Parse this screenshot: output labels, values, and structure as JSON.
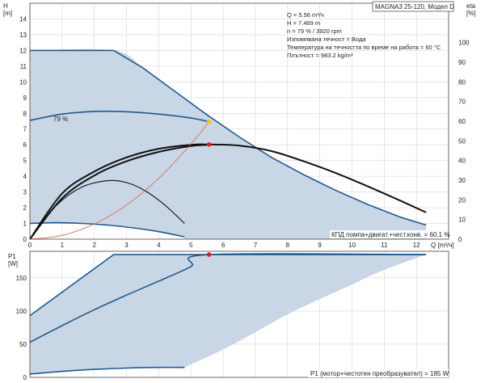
{
  "model_label": "MAGNA3 25-120, Модел D",
  "info_lines": [
    "Q = 5.56 m³/ч",
    "H = 7.469 m",
    "n = 79 % / 3920 rpm",
    "Изпомпвана течност = Вода",
    "Температура на течността по време на работа = 60 °C",
    "Плътност = 983.2 kg/m³"
  ],
  "chart_data": [
    {
      "type": "line",
      "title": "",
      "ylabel": "H",
      "yunit": "[m]",
      "ylabel_right": "eta",
      "yunit_right": "[%]",
      "xlabel": "Q [m³/ч]",
      "xlim": [
        0,
        13
      ],
      "ylim": [
        0,
        15
      ],
      "ylim_right": [
        0,
        120
      ],
      "xticks": [
        0,
        1,
        2,
        3,
        4,
        5,
        6,
        7,
        8,
        9,
        10,
        11,
        12
      ],
      "yticks": [
        0,
        1,
        2,
        3,
        4,
        5,
        6,
        7,
        8,
        9,
        10,
        11,
        12,
        13,
        14
      ],
      "yticks_right": [
        0,
        10,
        20,
        30,
        40,
        50,
        60,
        70,
        80,
        90,
        100
      ],
      "grid": true,
      "curve_label": "79 %",
      "efficiency_label": "КПД помпа+двигат.+чест.конв. = 60.1 %",
      "series": [
        {
          "role": "max_curve",
          "color": "#1f5a8f",
          "x": [
            0,
            2.6,
            3.5,
            4.5,
            5.5,
            6.5,
            7.5,
            8.5,
            9.5,
            10.5,
            11.5,
            12.3
          ],
          "y": [
            12,
            12,
            10.9,
            9.4,
            7.9,
            6.5,
            5.2,
            4.1,
            3.1,
            2.2,
            1.4,
            0.9
          ]
        },
        {
          "role": "min_curve",
          "color": "#1f5a8f",
          "x": [
            0,
            0.8,
            1.6,
            2.4,
            3.2,
            4.0,
            4.8
          ],
          "y": [
            1.0,
            1.05,
            1.0,
            0.9,
            0.72,
            0.48,
            0.15
          ]
        },
        {
          "role": "duty_curve",
          "name": "79 %",
          "color": "#1f5a8f",
          "x": [
            0,
            1,
            2,
            3,
            4,
            5,
            5.56
          ],
          "y": [
            7.55,
            7.95,
            8.12,
            8.1,
            7.95,
            7.7,
            7.469
          ]
        },
        {
          "role": "eta_max",
          "color": "#111111",
          "x": [
            0,
            1,
            2,
            3,
            4,
            5,
            5.56,
            6.5,
            7.5,
            8.5,
            9.5,
            10.5,
            11.5,
            12.3
          ],
          "y": [
            0,
            2.9,
            4.3,
            5.2,
            5.75,
            6.0,
            6.02,
            5.95,
            5.6,
            4.95,
            4.2,
            3.35,
            2.45,
            1.7
          ]
        },
        {
          "role": "eta_duty",
          "color": "#111111",
          "x": [
            0,
            1,
            2,
            3,
            4,
            5,
            5.56
          ],
          "y": [
            0,
            2.6,
            4.05,
            4.95,
            5.55,
            5.92,
            6.0
          ]
        },
        {
          "role": "eta_min",
          "color": "#111111",
          "x": [
            0,
            0.8,
            1.6,
            2.4,
            3.0,
            3.6,
            4.2,
            4.8
          ],
          "y": [
            0,
            2.1,
            3.3,
            3.72,
            3.6,
            3.05,
            2.15,
            1.0
          ]
        },
        {
          "role": "system_curve",
          "color": "#e06050",
          "x": [
            0,
            1,
            2,
            3,
            4,
            5,
            5.56
          ],
          "y": [
            0,
            0.24,
            0.97,
            2.17,
            3.87,
            6.04,
            7.469
          ]
        }
      ],
      "duty_points": [
        {
          "x": 5.56,
          "y": 7.469,
          "color": "#f5c21b"
        },
        {
          "x": 5.56,
          "y": 6.02,
          "color": "#e02020"
        }
      ]
    },
    {
      "type": "line",
      "title": "",
      "ylabel": "P1",
      "yunit": "[W]",
      "xlim": [
        0,
        13
      ],
      "ylim": [
        0,
        190
      ],
      "yticks": [
        0,
        50,
        100,
        150
      ],
      "grid": true,
      "power_label": "P1 (мотор+честотен преобразувател) = 185 W",
      "series": [
        {
          "role": "p1_max",
          "color": "#1f5a8f",
          "x": [
            0,
            2.6,
            12.3
          ],
          "y": [
            93,
            185,
            185
          ]
        },
        {
          "role": "p1_duty",
          "color": "#1f5a8f",
          "x": [
            0,
            1,
            2,
            3,
            4,
            5,
            5.56,
            12.3
          ],
          "y": [
            53,
            78,
            102,
            124,
            145,
            167,
            185,
            185
          ]
        },
        {
          "role": "p1_min",
          "color": "#1f5a8f",
          "x": [
            0,
            1,
            2,
            3,
            4,
            4.8
          ],
          "y": [
            5,
            9,
            12,
            14,
            15,
            15
          ]
        },
        {
          "role": "p1_band_edge",
          "color": "#c9d6e6",
          "x": [
            4.8,
            6,
            7,
            8,
            9,
            10,
            11,
            12.3
          ],
          "y": [
            15,
            42,
            68,
            95,
            118,
            140,
            162,
            185
          ]
        }
      ],
      "duty_points": [
        {
          "x": 5.56,
          "y": 185,
          "color": "#e02020"
        }
      ]
    }
  ]
}
